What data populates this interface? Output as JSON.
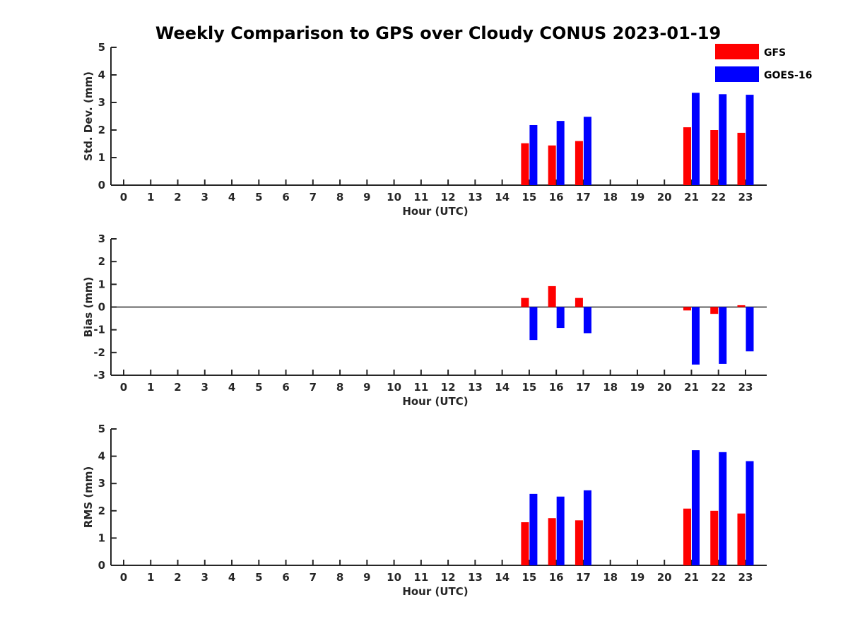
{
  "chart_title": "Weekly Comparison to GPS over Cloudy CONUS 2023-01-19",
  "colors": {
    "GFS": "#ff0000",
    "GOES-16": "#0000ff",
    "axis": "#262626"
  },
  "legend": {
    "position": "top-right",
    "entries": [
      "GFS",
      "GOES-16"
    ]
  },
  "chart_data": [
    {
      "type": "bar",
      "xlabel": "Hour (UTC)",
      "ylabel": "Std. Dev. (mm)",
      "ylim": [
        0,
        5
      ],
      "yticks": [
        0,
        1,
        2,
        3,
        4,
        5
      ],
      "categories": [
        "0",
        "1",
        "2",
        "3",
        "4",
        "5",
        "6",
        "7",
        "8",
        "9",
        "10",
        "11",
        "12",
        "13",
        "14",
        "15",
        "16",
        "17",
        "18",
        "19",
        "20",
        "21",
        "22",
        "23"
      ],
      "series": [
        {
          "name": "GFS",
          "values": [
            null,
            null,
            null,
            null,
            null,
            null,
            null,
            null,
            null,
            null,
            null,
            null,
            null,
            null,
            null,
            1.52,
            1.44,
            1.6,
            null,
            null,
            null,
            2.1,
            2.0,
            1.9
          ]
        },
        {
          "name": "GOES-16",
          "values": [
            null,
            null,
            null,
            null,
            null,
            null,
            null,
            null,
            null,
            null,
            null,
            null,
            null,
            null,
            null,
            2.18,
            2.33,
            2.48,
            null,
            null,
            null,
            3.35,
            3.3,
            3.28
          ]
        }
      ]
    },
    {
      "type": "bar",
      "xlabel": "Hour (UTC)",
      "ylabel": "Bias (mm)",
      "ylim": [
        -3,
        3
      ],
      "yticks": [
        -3,
        -2,
        -1,
        0,
        1,
        2,
        3
      ],
      "categories": [
        "0",
        "1",
        "2",
        "3",
        "4",
        "5",
        "6",
        "7",
        "8",
        "9",
        "10",
        "11",
        "12",
        "13",
        "14",
        "15",
        "16",
        "17",
        "18",
        "19",
        "20",
        "21",
        "22",
        "23"
      ],
      "series": [
        {
          "name": "GFS",
          "values": [
            null,
            null,
            null,
            null,
            null,
            null,
            null,
            null,
            null,
            null,
            null,
            null,
            null,
            null,
            null,
            0.4,
            0.92,
            0.4,
            null,
            null,
            null,
            -0.15,
            -0.3,
            0.08
          ]
        },
        {
          "name": "GOES-16",
          "values": [
            null,
            null,
            null,
            null,
            null,
            null,
            null,
            null,
            null,
            null,
            null,
            null,
            null,
            null,
            null,
            -1.45,
            -0.92,
            -1.15,
            null,
            null,
            null,
            -2.53,
            -2.5,
            -1.95
          ]
        }
      ]
    },
    {
      "type": "bar",
      "xlabel": "Hour (UTC)",
      "ylabel": "RMS (mm)",
      "ylim": [
        0,
        5
      ],
      "yticks": [
        0,
        1,
        2,
        3,
        4,
        5
      ],
      "categories": [
        "0",
        "1",
        "2",
        "3",
        "4",
        "5",
        "6",
        "7",
        "8",
        "9",
        "10",
        "11",
        "12",
        "13",
        "14",
        "15",
        "16",
        "17",
        "18",
        "19",
        "20",
        "21",
        "22",
        "23"
      ],
      "series": [
        {
          "name": "GFS",
          "values": [
            null,
            null,
            null,
            null,
            null,
            null,
            null,
            null,
            null,
            null,
            null,
            null,
            null,
            null,
            null,
            1.58,
            1.73,
            1.65,
            null,
            null,
            null,
            2.08,
            2.0,
            1.9
          ]
        },
        {
          "name": "GOES-16",
          "values": [
            null,
            null,
            null,
            null,
            null,
            null,
            null,
            null,
            null,
            null,
            null,
            null,
            null,
            null,
            null,
            2.62,
            2.52,
            2.75,
            null,
            null,
            null,
            4.22,
            4.15,
            3.82
          ]
        }
      ]
    }
  ]
}
